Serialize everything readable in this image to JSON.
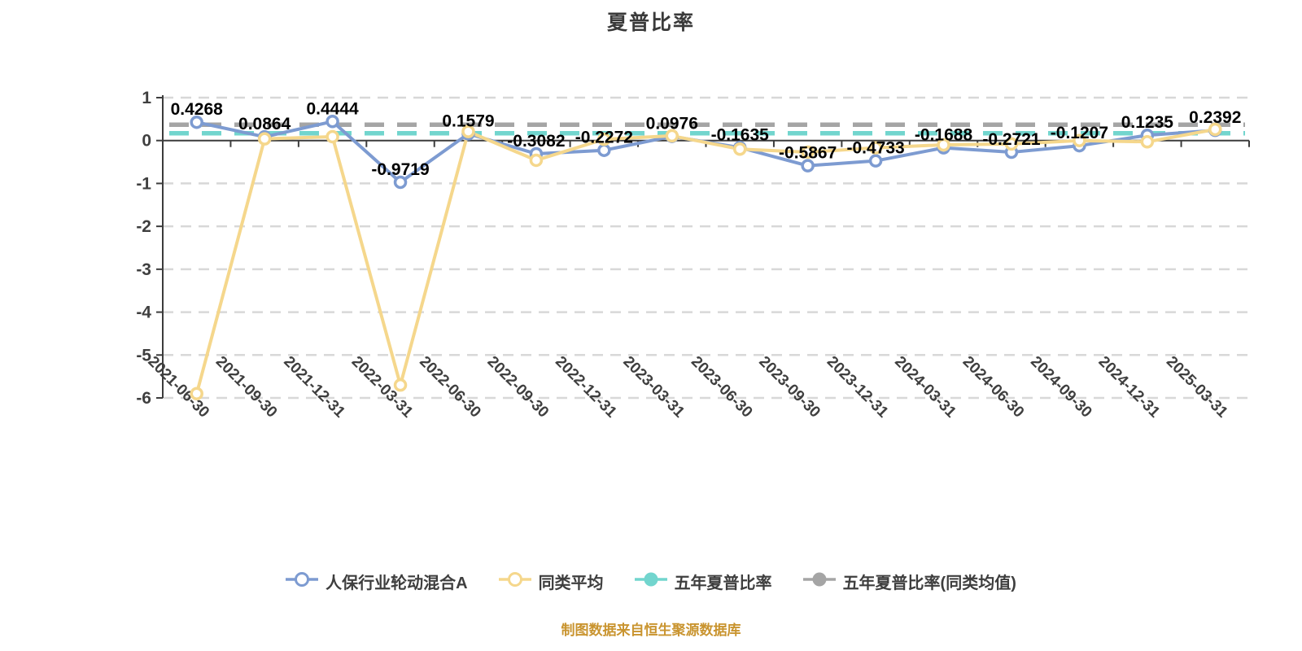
{
  "title": "夏普比率",
  "footer": {
    "note": "制图数据来自恒生聚源数据库",
    "color": "#C9942F"
  },
  "colors": {
    "fund_line": "#7D9BD1",
    "peer_line": "#F5D78C",
    "five_year_line": "#72D5CE",
    "five_year_peer_line": "#A5A5A5",
    "axis": "#3C3C3C",
    "tick_label": "#3F3F3F",
    "grid": "#D8D8D8",
    "data_label": "#000000",
    "title_text": "#3A3A3A",
    "background": "#FFFFFF"
  },
  "legend": {
    "items": [
      {
        "label": "人保行业轮动混合A",
        "color": "#7D9BD1",
        "marker": "donut"
      },
      {
        "label": "同类平均",
        "color": "#F5D78C",
        "marker": "donut"
      },
      {
        "label": "五年夏普比率",
        "color": "#72D5CE",
        "marker": "solid"
      },
      {
        "label": "五年夏普比率(同类均值)",
        "color": "#A5A5A5",
        "marker": "solid"
      }
    ]
  },
  "chart_data": {
    "type": "line",
    "title": "夏普比率",
    "xlabel": "",
    "ylabel": "",
    "ylim": [
      -6,
      1
    ],
    "yticks": [
      1,
      0,
      -1,
      -2,
      -3,
      -4,
      -5,
      -6
    ],
    "grid": "horizontal-dashed",
    "legend_position": "bottom",
    "categories": [
      "2021-06-30",
      "2021-09-30",
      "2021-12-31",
      "2022-03-31",
      "2022-06-30",
      "2022-09-30",
      "2022-12-31",
      "2023-03-31",
      "2023-06-30",
      "2023-09-30",
      "2023-12-31",
      "2024-03-31",
      "2024-06-30",
      "2024-09-30",
      "2024-12-31",
      "2025-03-31"
    ],
    "series": [
      {
        "name": "人保行业轮动混合A",
        "kind": "line",
        "color": "#7D9BD1",
        "marker": "donut",
        "values": [
          0.4268,
          0.0864,
          0.4444,
          -0.9719,
          0.1579,
          -0.3082,
          -0.2272,
          0.0976,
          -0.1635,
          -0.5867,
          -0.4733,
          -0.1688,
          -0.2721,
          -0.1207,
          0.1235,
          0.2392
        ],
        "labels": [
          "0.4268",
          "0.0864",
          "0.4444",
          "-0.9719",
          "0.1579",
          "-0.3082",
          "-0.2272",
          "0.0976",
          "-0.1635",
          "-0.5867",
          "-0.4733",
          "-0.1688",
          "-0.2721",
          "-0.1207",
          "0.1235",
          "0.2392"
        ]
      },
      {
        "name": "同类平均",
        "kind": "line",
        "color": "#F5D78C",
        "marker": "donut",
        "values": [
          -5.9,
          0.04,
          0.09,
          -5.7,
          0.21,
          -0.46,
          0.03,
          0.11,
          -0.2,
          -0.27,
          -0.17,
          -0.1,
          -0.08,
          0.0,
          -0.03,
          0.26
        ],
        "labels": []
      },
      {
        "name": "五年夏普比率",
        "kind": "dashed-horizontal",
        "color": "#72D5CE",
        "value": 0.17
      },
      {
        "name": "五年夏普比率(同类均值)",
        "kind": "dashed-horizontal",
        "color": "#A5A5A5",
        "value": 0.37
      }
    ]
  }
}
